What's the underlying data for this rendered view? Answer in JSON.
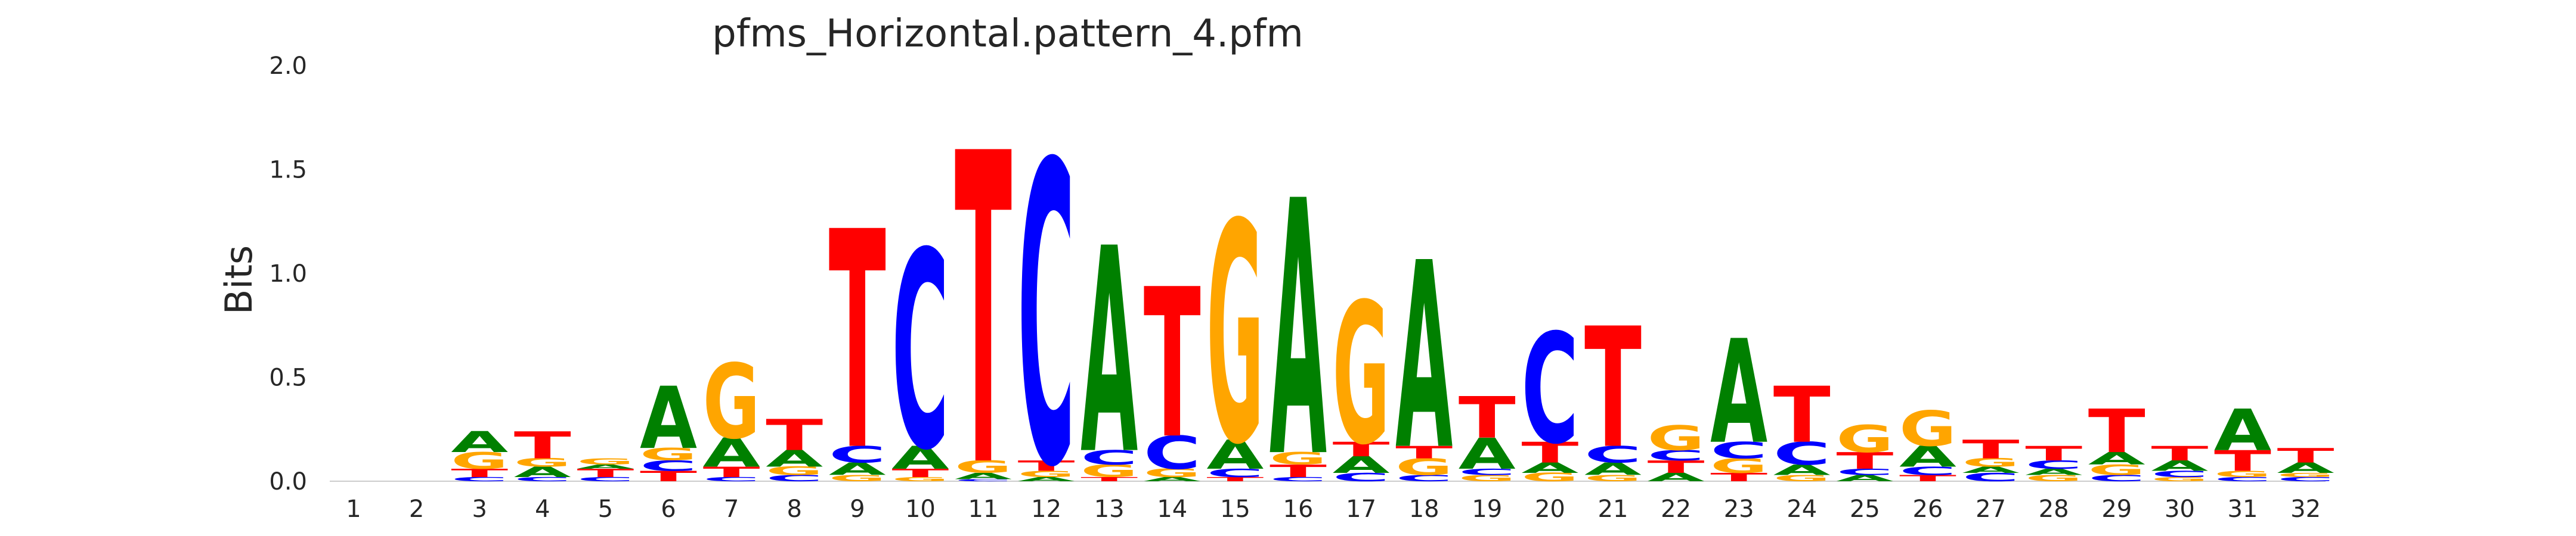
{
  "chart_data": {
    "type": "sequence-logo",
    "title": "pfms_Horizontal.pattern_4.pfm",
    "xlabel": "",
    "ylabel": "Bits",
    "ylim": [
      0,
      2.0
    ],
    "y_ticks": [
      "0.0",
      "0.5",
      "1.0",
      "1.5",
      "2.0"
    ],
    "grid": false,
    "legend": "none",
    "colors": {
      "A": "#008000",
      "C": "#0000ff",
      "G": "#ffa500",
      "T": "#ff0000"
    },
    "positions": [
      {
        "pos": "1",
        "stack": []
      },
      {
        "pos": "2",
        "stack": []
      },
      {
        "pos": "3",
        "stack": [
          [
            "C",
            0.02
          ],
          [
            "T",
            0.04
          ],
          [
            "G",
            0.08
          ],
          [
            "A",
            0.1
          ]
        ]
      },
      {
        "pos": "4",
        "stack": [
          [
            "C",
            0.02
          ],
          [
            "A",
            0.05
          ],
          [
            "G",
            0.04
          ],
          [
            "T",
            0.13
          ]
        ]
      },
      {
        "pos": "5",
        "stack": [
          [
            "C",
            0.02
          ],
          [
            "T",
            0.04
          ],
          [
            "A",
            0.02
          ],
          [
            "G",
            0.03
          ]
        ]
      },
      {
        "pos": "6",
        "stack": [
          [
            "T",
            0.05
          ],
          [
            "C",
            0.05
          ],
          [
            "G",
            0.06
          ],
          [
            "A",
            0.3
          ]
        ]
      },
      {
        "pos": "7",
        "stack": [
          [
            "C",
            0.02
          ],
          [
            "T",
            0.05
          ],
          [
            "A",
            0.14
          ],
          [
            "G",
            0.36
          ]
        ]
      },
      {
        "pos": "8",
        "stack": [
          [
            "C",
            0.03
          ],
          [
            "G",
            0.04
          ],
          [
            "A",
            0.08
          ],
          [
            "T",
            0.15
          ]
        ]
      },
      {
        "pos": "9",
        "stack": [
          [
            "G",
            0.03
          ],
          [
            "A",
            0.06
          ],
          [
            "C",
            0.08
          ],
          [
            "T",
            1.05
          ]
        ]
      },
      {
        "pos": "10",
        "stack": [
          [
            "G",
            0.02
          ],
          [
            "T",
            0.04
          ],
          [
            "A",
            0.11
          ],
          [
            "C",
            0.95
          ]
        ]
      },
      {
        "pos": "11",
        "stack": [
          [
            "C",
            0.01
          ],
          [
            "A",
            0.03
          ],
          [
            "G",
            0.06
          ],
          [
            "T",
            1.5
          ]
        ]
      },
      {
        "pos": "12",
        "stack": [
          [
            "A",
            0.02
          ],
          [
            "G",
            0.03
          ],
          [
            "T",
            0.05
          ],
          [
            "C",
            1.45
          ]
        ]
      },
      {
        "pos": "13",
        "stack": [
          [
            "T",
            0.02
          ],
          [
            "G",
            0.06
          ],
          [
            "C",
            0.07
          ],
          [
            "A",
            0.99
          ]
        ]
      },
      {
        "pos": "14",
        "stack": [
          [
            "A",
            0.02
          ],
          [
            "G",
            0.04
          ],
          [
            "C",
            0.16
          ],
          [
            "T",
            0.72
          ]
        ]
      },
      {
        "pos": "15",
        "stack": [
          [
            "T",
            0.02
          ],
          [
            "C",
            0.04
          ],
          [
            "A",
            0.14
          ],
          [
            "G",
            1.06
          ]
        ]
      },
      {
        "pos": "16",
        "stack": [
          [
            "C",
            0.02
          ],
          [
            "T",
            0.06
          ],
          [
            "G",
            0.06
          ],
          [
            "A",
            1.23
          ]
        ]
      },
      {
        "pos": "17",
        "stack": [
          [
            "C",
            0.04
          ],
          [
            "A",
            0.08
          ],
          [
            "T",
            0.07
          ],
          [
            "G",
            0.68
          ]
        ]
      },
      {
        "pos": "18",
        "stack": [
          [
            "C",
            0.03
          ],
          [
            "G",
            0.08
          ],
          [
            "T",
            0.06
          ],
          [
            "A",
            0.9
          ]
        ]
      },
      {
        "pos": "19",
        "stack": [
          [
            "G",
            0.03
          ],
          [
            "C",
            0.03
          ],
          [
            "A",
            0.15
          ],
          [
            "T",
            0.2
          ]
        ]
      },
      {
        "pos": "20",
        "stack": [
          [
            "G",
            0.04
          ],
          [
            "A",
            0.05
          ],
          [
            "T",
            0.1
          ],
          [
            "C",
            0.53
          ]
        ]
      },
      {
        "pos": "21",
        "stack": [
          [
            "G",
            0.03
          ],
          [
            "A",
            0.06
          ],
          [
            "C",
            0.08
          ],
          [
            "T",
            0.58
          ]
        ]
      },
      {
        "pos": "22",
        "stack": [
          [
            "A",
            0.04
          ],
          [
            "T",
            0.06
          ],
          [
            "C",
            0.05
          ],
          [
            "G",
            0.12
          ]
        ]
      },
      {
        "pos": "23",
        "stack": [
          [
            "T",
            0.04
          ],
          [
            "G",
            0.07
          ],
          [
            "C",
            0.08
          ],
          [
            "A",
            0.5
          ]
        ]
      },
      {
        "pos": "24",
        "stack": [
          [
            "G",
            0.03
          ],
          [
            "A",
            0.05
          ],
          [
            "C",
            0.11
          ],
          [
            "T",
            0.27
          ]
        ]
      },
      {
        "pos": "25",
        "stack": [
          [
            "A",
            0.03
          ],
          [
            "C",
            0.03
          ],
          [
            "T",
            0.08
          ],
          [
            "G",
            0.13
          ]
        ]
      },
      {
        "pos": "26",
        "stack": [
          [
            "T",
            0.03
          ],
          [
            "C",
            0.04
          ],
          [
            "A",
            0.1
          ],
          [
            "G",
            0.17
          ]
        ]
      },
      {
        "pos": "27",
        "stack": [
          [
            "C",
            0.04
          ],
          [
            "A",
            0.03
          ],
          [
            "G",
            0.04
          ],
          [
            "T",
            0.09
          ]
        ]
      },
      {
        "pos": "28",
        "stack": [
          [
            "G",
            0.03
          ],
          [
            "A",
            0.03
          ],
          [
            "C",
            0.04
          ],
          [
            "T",
            0.07
          ]
        ]
      },
      {
        "pos": "29",
        "stack": [
          [
            "C",
            0.03
          ],
          [
            "G",
            0.05
          ],
          [
            "A",
            0.06
          ],
          [
            "T",
            0.21
          ]
        ]
      },
      {
        "pos": "30",
        "stack": [
          [
            "G",
            0.02
          ],
          [
            "C",
            0.03
          ],
          [
            "A",
            0.05
          ],
          [
            "T",
            0.07
          ]
        ]
      },
      {
        "pos": "31",
        "stack": [
          [
            "C",
            0.02
          ],
          [
            "G",
            0.03
          ],
          [
            "T",
            0.1
          ],
          [
            "A",
            0.2
          ]
        ]
      },
      {
        "pos": "32",
        "stack": [
          [
            "C",
            0.02
          ],
          [
            "G",
            0.02
          ],
          [
            "A",
            0.05
          ],
          [
            "T",
            0.07
          ]
        ]
      }
    ]
  }
}
